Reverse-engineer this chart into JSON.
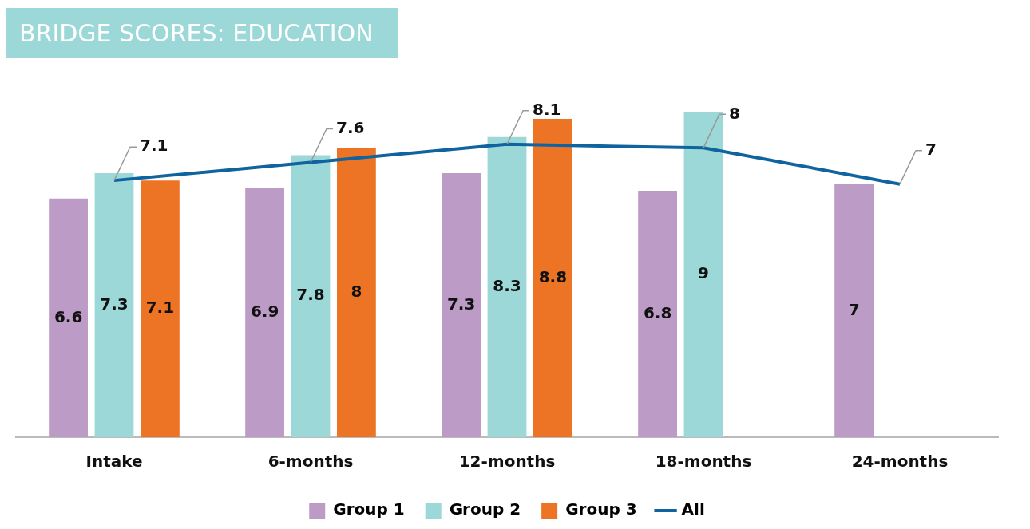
{
  "chart_data": {
    "type": "bar",
    "title": "BRIDGE SCORES: EDUCATION",
    "categories": [
      "Intake",
      "6-months",
      "12-months",
      "18-months",
      "24-months"
    ],
    "series": [
      {
        "name": "Group 1",
        "color": "#bc9bc6",
        "values": [
          6.6,
          6.9,
          7.3,
          6.8,
          7
        ]
      },
      {
        "name": "Group 2",
        "color": "#9dd8d9",
        "values": [
          7.3,
          7.8,
          8.3,
          9,
          null
        ]
      },
      {
        "name": "Group 3",
        "color": "#ee7425",
        "values": [
          7.1,
          8,
          8.8,
          null,
          null
        ]
      },
      {
        "name": "All",
        "type": "line",
        "color": "#0f64a0",
        "values": [
          7.1,
          7.6,
          8.1,
          8,
          7
        ]
      }
    ],
    "data_labels": true,
    "legend": "bottom",
    "grid": false,
    "tick_labels": "x",
    "marker": "none"
  }
}
